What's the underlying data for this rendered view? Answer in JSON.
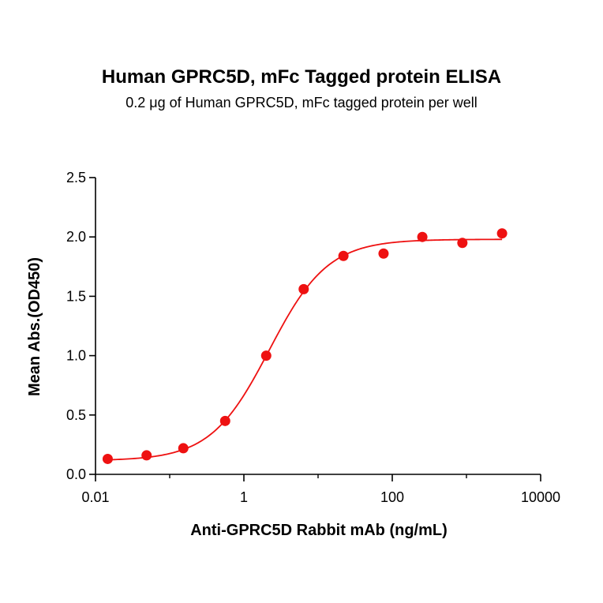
{
  "chart_data": {
    "type": "scatter",
    "title": "Human GPRC5D, mFc Tagged protein ELISA",
    "subtitle": "0.2 μg of Human GPRC5D, mFc tagged protein per well",
    "xlabel": "Anti-GPRC5D Rabbit mAb (ng/mL)",
    "ylabel": "Mean Abs.(OD450)",
    "x_scale": "log",
    "xlim": [
      0.01,
      10000
    ],
    "ylim": [
      0.0,
      2.5
    ],
    "x_ticks": [
      0.01,
      1,
      100,
      10000
    ],
    "x_tick_labels": [
      "0.01",
      "1",
      "100",
      "10000"
    ],
    "y_ticks": [
      0.0,
      0.5,
      1.0,
      1.5,
      2.0,
      2.5
    ],
    "y_tick_labels": [
      "0.0",
      "0.5",
      "1.0",
      "1.5",
      "2.0",
      "2.5"
    ],
    "grid": false,
    "color": "#ee1111",
    "series": [
      {
        "x": [
          0.0146,
          0.0488,
          0.1526,
          0.5593,
          2.0,
          6.4,
          21.97,
          76.3,
          254.3,
          881.3,
          3019.5
        ],
        "y": [
          0.13,
          0.16,
          0.22,
          0.45,
          1.0,
          1.56,
          1.84,
          1.86,
          2.0,
          1.95,
          2.03
        ]
      }
    ],
    "fit_curve": {
      "model": "4PL",
      "bottom": 0.115,
      "top": 1.98,
      "ec50": 2.2,
      "hill": 1.1
    }
  }
}
